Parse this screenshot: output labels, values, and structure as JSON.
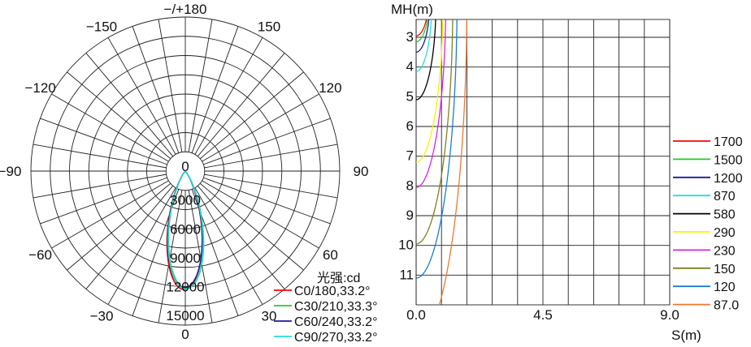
{
  "chart_data": [
    {
      "type": "polar",
      "angle_labels": [
        {
          "angle": 180,
          "text": "−/+180"
        },
        {
          "angle": -150,
          "text": "−150"
        },
        {
          "angle": 150,
          "text": "150"
        },
        {
          "angle": -120,
          "text": "−120"
        },
        {
          "angle": 120,
          "text": "120"
        },
        {
          "angle": -90,
          "text": "−90"
        },
        {
          "angle": 90,
          "text": "90"
        },
        {
          "angle": -60,
          "text": "−60"
        },
        {
          "angle": 60,
          "text": "60"
        },
        {
          "angle": -30,
          "text": "−30"
        },
        {
          "angle": 30,
          "text": "30"
        },
        {
          "angle": 0,
          "text": "0"
        }
      ],
      "radial_max": 16000,
      "radial_ticks": [
        0,
        3000,
        6000,
        9000,
        12000,
        15000
      ],
      "radial_tick_labels": [
        "0",
        "3000",
        "6000",
        "9000",
        "12000",
        "15000"
      ],
      "unit_label": "光强:cd",
      "series": [
        {
          "name": "C0/180,33.2°",
          "color": "#ff0000",
          "peak": 12300,
          "half_angle": 16.6,
          "rot": -0.6
        },
        {
          "name": "C30/210,33.3°",
          "color": "#22cc22",
          "peak": 12200,
          "half_angle": 16.7,
          "rot": 0.6
        },
        {
          "name": "C60/240,33.2°",
          "color": "#1a1aa0",
          "peak": 12100,
          "half_angle": 16.6,
          "rot": -0.3
        },
        {
          "name": "C90/270,33.2°",
          "color": "#22dddd",
          "peak": 12250,
          "half_angle": 16.6,
          "rot": 0.3
        }
      ]
    },
    {
      "type": "line",
      "title": "",
      "ylabel": "MH(m)",
      "xlabel": "S(m)",
      "xlim": [
        0,
        9
      ],
      "ylim": [
        2.4,
        12
      ],
      "x_tick_labels": [
        {
          "x": 0,
          "text": "0.0"
        },
        {
          "x": 4.5,
          "text": "4.5"
        },
        {
          "x": 9,
          "text": "9.0"
        }
      ],
      "y_tick_labels": [
        {
          "y": 3,
          "text": "3"
        },
        {
          "y": 4,
          "text": "4"
        },
        {
          "y": 5,
          "text": "5"
        },
        {
          "y": 6,
          "text": "6"
        },
        {
          "y": 7,
          "text": "7"
        },
        {
          "y": 8,
          "text": "8"
        },
        {
          "y": 9,
          "text": "9"
        },
        {
          "y": 10,
          "text": "10"
        },
        {
          "y": 11,
          "text": "11"
        }
      ],
      "series": [
        {
          "name": "1700",
          "color": "#ff0000",
          "x_width": 0.35,
          "y_bottom": 2.95
        },
        {
          "name": "1500",
          "color": "#22cc22",
          "x_width": 0.38,
          "y_bottom": 3.15
        },
        {
          "name": "1200",
          "color": "#1a1aa0",
          "x_width": 0.42,
          "y_bottom": 3.5
        },
        {
          "name": "870",
          "color": "#22dddd",
          "x_width": 0.5,
          "y_bottom": 4.15
        },
        {
          "name": "580",
          "color": "#000000",
          "x_width": 0.65,
          "y_bottom": 5.1
        },
        {
          "name": "290",
          "color": "#f5f500",
          "x_width": 0.9,
          "y_bottom": 7.2
        },
        {
          "name": "230",
          "color": "#e020e0",
          "x_width": 1.0,
          "y_bottom": 8.05
        },
        {
          "name": "150",
          "color": "#808020",
          "x_width": 1.25,
          "y_bottom": 9.95
        },
        {
          "name": "120",
          "color": "#1a7fd0",
          "x_width": 1.4,
          "y_bottom": 11.1
        },
        {
          "name": "87.0",
          "color": "#f07830",
          "x_width": 1.75,
          "y_bottom": 13.3
        }
      ]
    }
  ]
}
